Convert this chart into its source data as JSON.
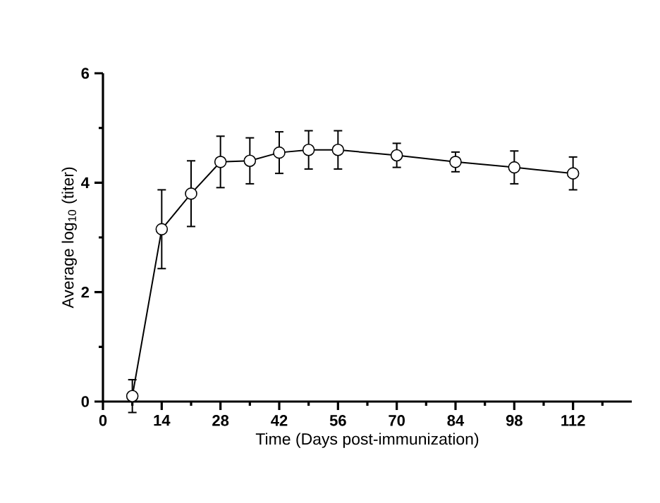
{
  "chart_data": {
    "type": "line",
    "xlabel": "Time (Days post-immunization)",
    "ylabel": "Average log$_{10}$ (titer)",
    "x": [
      7,
      14,
      21,
      28,
      35,
      42,
      49,
      56,
      70,
      84,
      98,
      112
    ],
    "values": [
      0.1,
      3.15,
      3.8,
      4.38,
      4.4,
      4.55,
      4.6,
      4.6,
      4.5,
      4.38,
      4.28,
      4.17
    ],
    "errors": [
      0.3,
      0.72,
      0.6,
      0.47,
      0.42,
      0.38,
      0.35,
      0.35,
      0.22,
      0.18,
      0.3,
      0.3
    ],
    "color": "#000000",
    "marker": "circle",
    "line_style": "solid",
    "xlim": [
      0,
      126
    ],
    "ylim": [
      0,
      6
    ],
    "xticks": [
      0,
      {
        "value": 7,
        "label": null
      },
      14,
      {
        "value": 21,
        "label": null
      },
      28,
      {
        "value": 35,
        "label": null
      },
      42,
      {
        "value": 49,
        "label": null
      },
      56,
      {
        "value": 63,
        "label": null
      },
      70,
      {
        "value": 77,
        "label": null
      },
      84,
      {
        "value": 91,
        "label": null
      },
      98,
      {
        "value": 105,
        "label": null
      },
      112,
      {
        "value": 119,
        "label": null
      }
    ],
    "yticks": [
      0,
      {
        "value": 1,
        "label": null
      },
      2,
      {
        "value": 3,
        "label": null
      },
      4,
      {
        "value": 5,
        "label": null
      },
      6
    ]
  }
}
